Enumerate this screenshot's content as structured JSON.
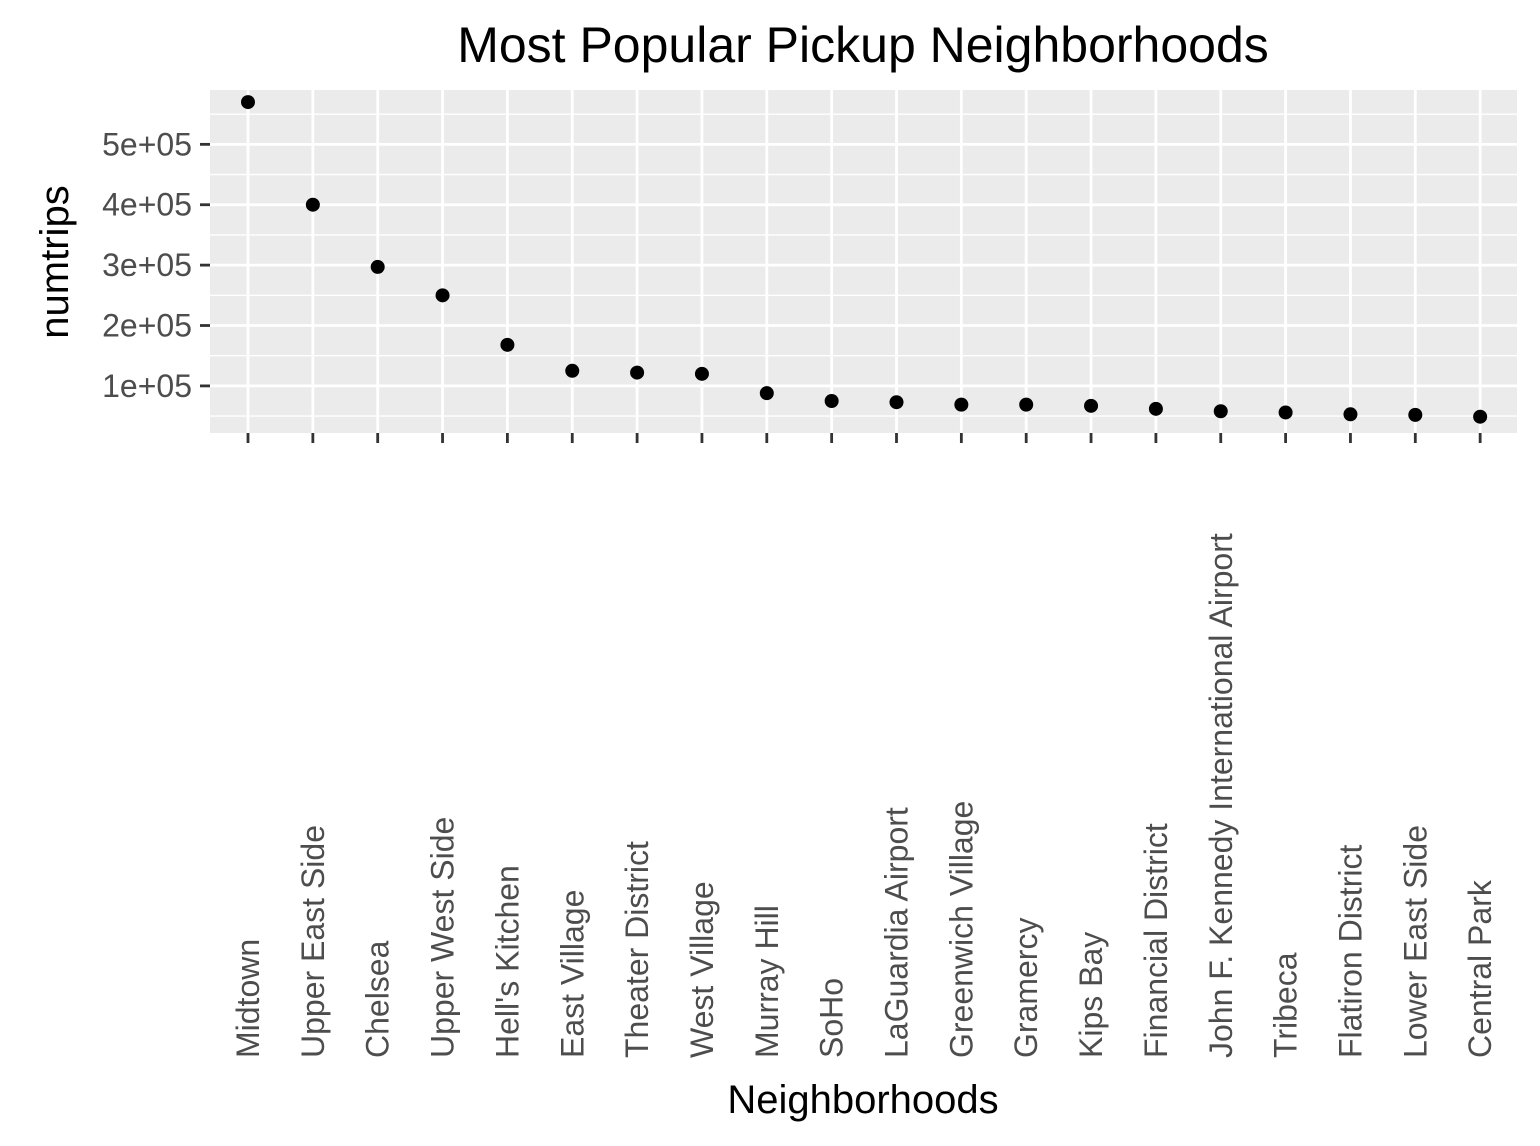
{
  "chart_data": {
    "type": "scatter",
    "title": "Most Popular Pickup Neighborhoods",
    "xlabel": "Neighborhoods",
    "ylabel": "numtrips",
    "categories": [
      "Midtown",
      "Upper East Side",
      "Chelsea",
      "Upper West Side",
      "Hell's Kitchen",
      "East Village",
      "Theater District",
      "West Village",
      "Murray Hill",
      "SoHo",
      "LaGuardia Airport",
      "Greenwich Village",
      "Gramercy",
      "Kips Bay",
      "Financial District",
      "John F. Kennedy International Airport",
      "Tribeca",
      "Flatiron District",
      "Lower East Side",
      "Central Park"
    ],
    "values": [
      570000,
      400000,
      297000,
      250000,
      168000,
      125000,
      122000,
      120000,
      88000,
      75000,
      73000,
      69000,
      69000,
      67000,
      62000,
      58000,
      56000,
      53000,
      52000,
      49000
    ],
    "ylim": [
      22000,
      590000
    ],
    "yticks": [
      100000,
      200000,
      300000,
      400000,
      500000
    ],
    "ytick_labels": [
      "1e+05",
      "2e+05",
      "3e+05",
      "4e+05",
      "5e+05"
    ],
    "grid": true,
    "legend": "none",
    "colors": {
      "panel": "#ebebeb",
      "grid": "#ffffff",
      "point": "#000000",
      "tick": "#333333"
    }
  }
}
